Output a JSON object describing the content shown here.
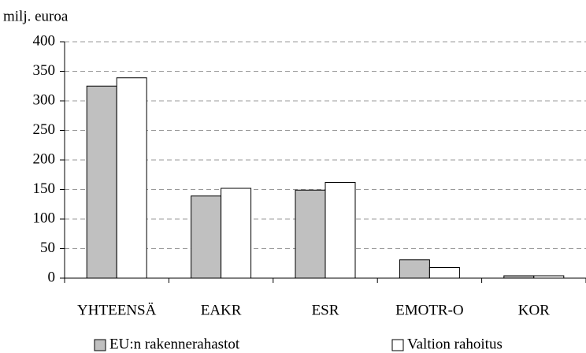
{
  "chart_data": {
    "type": "bar",
    "y_label": "milj. euroa",
    "categories": [
      "YHTEENSÄ",
      "EAKR",
      "ESR",
      "EMOTR-O",
      "KOR"
    ],
    "series": [
      {
        "name": "EU:n rakennerahastot",
        "color": "#c0c0c0",
        "values": [
          325,
          139,
          149,
          31,
          4
        ]
      },
      {
        "name": "Valtion rahoitus",
        "color": "#ffffff",
        "values": [
          339,
          152,
          162,
          18,
          4
        ]
      }
    ],
    "ylim": [
      0,
      400
    ],
    "yticks": [
      0,
      50,
      100,
      150,
      200,
      250,
      300,
      350,
      400
    ],
    "grid": true,
    "legend": "bottom"
  }
}
